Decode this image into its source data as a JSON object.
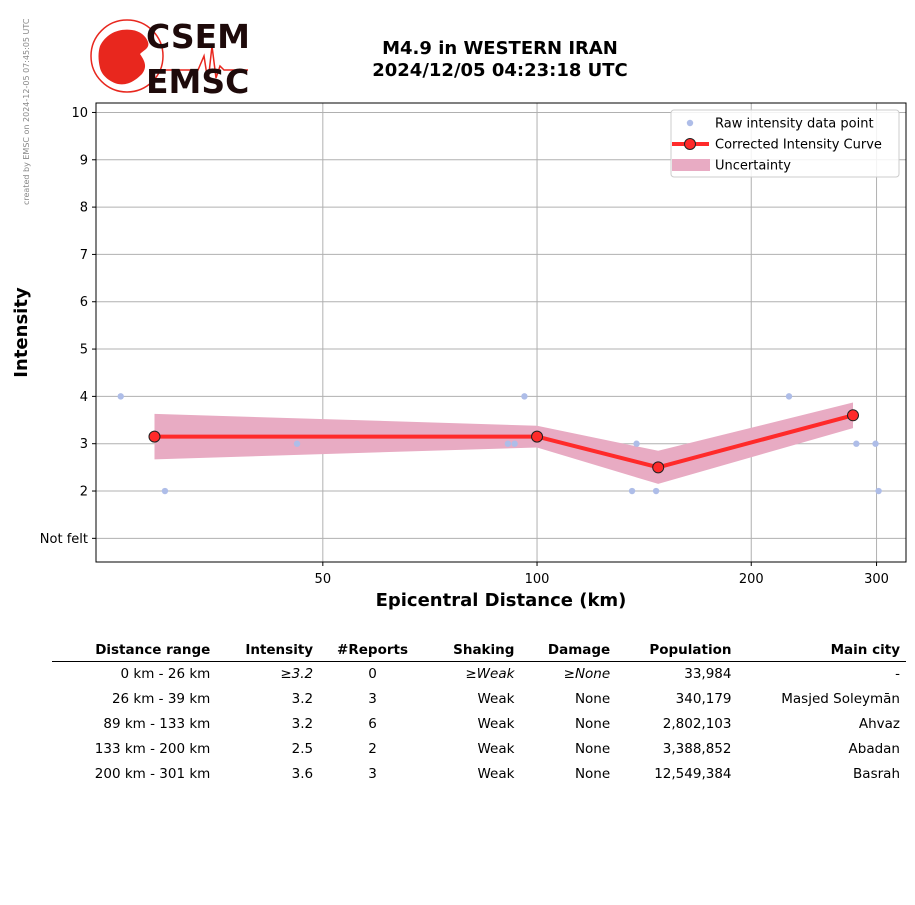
{
  "side_note": "created by EMSC on 2024-12-05 07:45:05 UTC",
  "logo": {
    "top_text": "CSEM",
    "bottom_text": "EMSC",
    "colors": {
      "red": "#e8271e",
      "dark": "#1e0a0a"
    }
  },
  "title": {
    "line1": "M4.9 in WESTERN IRAN",
    "line2": "2024/12/05 04:23:18 UTC"
  },
  "chart_data": {
    "type": "scatter",
    "xlabel": "Epicentral Distance (km)",
    "ylabel": "Intensity",
    "x_scale": "log",
    "xlim": [
      24,
      330
    ],
    "ylim": [
      0.5,
      10.2
    ],
    "x_ticks": [
      50,
      100,
      200,
      300
    ],
    "y_ticks": [
      {
        "value": 1,
        "label": "Not felt"
      },
      {
        "value": 2,
        "label": "2"
      },
      {
        "value": 3,
        "label": "3"
      },
      {
        "value": 4,
        "label": "4"
      },
      {
        "value": 5,
        "label": "5"
      },
      {
        "value": 6,
        "label": "6"
      },
      {
        "value": 7,
        "label": "7"
      },
      {
        "value": 8,
        "label": "8"
      },
      {
        "value": 9,
        "label": "9"
      },
      {
        "value": 10,
        "label": "10"
      }
    ],
    "grid": true,
    "legend_position": "top-right",
    "series": [
      {
        "name": "Raw intensity data point",
        "kind": "points",
        "color": "#aebde8",
        "points": [
          [
            26,
            4
          ],
          [
            30,
            2
          ],
          [
            46,
            3
          ],
          [
            91,
            3
          ],
          [
            93,
            3
          ],
          [
            96,
            4
          ],
          [
            136,
            2
          ],
          [
            138,
            3
          ],
          [
            147,
            2
          ],
          [
            226,
            4
          ],
          [
            281,
            3
          ],
          [
            299,
            3
          ],
          [
            302,
            2
          ]
        ]
      },
      {
        "name": "Corrected Intensity Curve",
        "kind": "line",
        "color": "#ff2a2a",
        "points": [
          [
            29,
            3.15
          ],
          [
            100,
            3.15
          ],
          [
            148,
            2.5
          ],
          [
            278,
            3.6
          ]
        ]
      },
      {
        "name": "Uncertainty",
        "kind": "band",
        "color": "#e8abc3",
        "upper": [
          [
            29,
            3.63
          ],
          [
            100,
            3.38
          ],
          [
            148,
            2.85
          ],
          [
            278,
            3.87
          ]
        ],
        "lower": [
          [
            29,
            2.67
          ],
          [
            100,
            2.92
          ],
          [
            148,
            2.15
          ],
          [
            278,
            3.33
          ]
        ]
      }
    ]
  },
  "table": {
    "headers": [
      "Distance range",
      "Intensity",
      "#Reports",
      "Shaking",
      "Damage",
      "Population",
      "Main city"
    ],
    "rows": [
      [
        "0 km -   26 km",
        "≥3.2",
        "0",
        "≥Weak",
        "≥None",
        "33,984",
        "-"
      ],
      [
        "26 km -   39 km",
        "3.2",
        "3",
        "Weak",
        "None",
        "340,179",
        "Masjed Soleymān"
      ],
      [
        "89 km -  133 km",
        "3.2",
        "6",
        "Weak",
        "None",
        "2,802,103",
        "Ahvaz"
      ],
      [
        "133 km -  200 km",
        "2.5",
        "2",
        "Weak",
        "None",
        "3,388,852",
        "Abadan"
      ],
      [
        "200 km -  301 km",
        "3.6",
        "3",
        "Weak",
        "None",
        "12,549,384",
        "Basrah"
      ]
    ]
  }
}
